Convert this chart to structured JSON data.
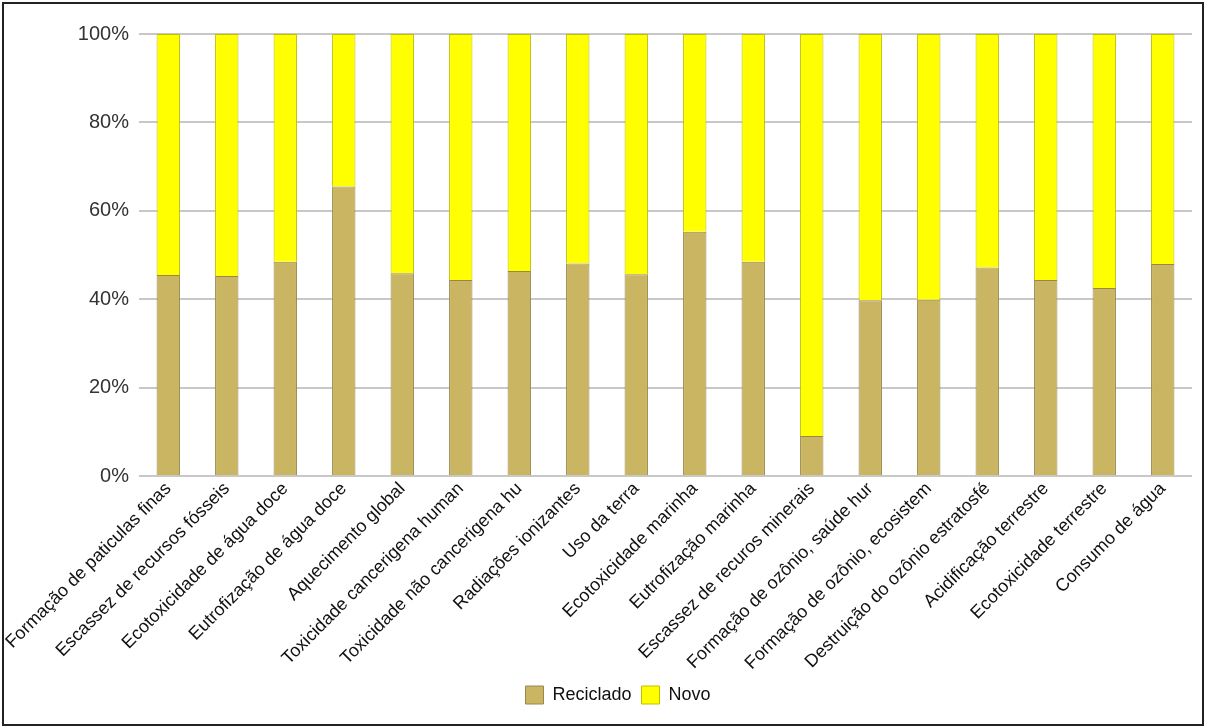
{
  "chart_data": {
    "type": "bar",
    "stacked": true,
    "categories": [
      "Formação de paticulas finas",
      "Escassez de recursos fósseis",
      "Ecotoxicidade de água doce",
      "Eutrofização de água doce",
      "Aquecimento global",
      "Toxicidade cancerigena human",
      "Toxicidade não cancerigena hu",
      "Radiações ionizantes",
      "Uso da terra",
      "Ecotoxicidade marinha",
      "Eutrofização marinha",
      "Escassez de recuros minerais",
      "Formação de ozônio, saúde hur",
      "Formação de ozônio, ecosistem",
      "Destruição do ozônio estratosfé",
      "Acidificação terrestre",
      "Ecotoxicidade terrestre",
      "Consumo de água"
    ],
    "series": [
      {
        "name": "Reciclado",
        "color": "#c9b562",
        "values": [
          45.5,
          45.3,
          48.5,
          65.5,
          45.9,
          44.4,
          46.4,
          48.1,
          45.7,
          55.3,
          48.5,
          9.1,
          39.8,
          39.9,
          47.2,
          44.4,
          42.6,
          48.0
        ]
      },
      {
        "name": "Novo",
        "color": "#ffff00",
        "values": [
          54.5,
          54.7,
          51.5,
          34.5,
          54.1,
          55.6,
          53.6,
          51.9,
          54.3,
          44.7,
          51.5,
          90.9,
          60.2,
          60.1,
          52.8,
          55.6,
          57.4,
          52.0
        ]
      }
    ],
    "ylim": [
      0,
      100
    ],
    "yticks": [
      {
        "value": 0,
        "label": "0%"
      },
      {
        "value": 20,
        "label": "20%"
      },
      {
        "value": 40,
        "label": "40%"
      },
      {
        "value": 60,
        "label": "60%"
      },
      {
        "value": 80,
        "label": "80%"
      },
      {
        "value": 100,
        "label": "100%"
      }
    ],
    "grid": "y",
    "legend": "bottom"
  }
}
